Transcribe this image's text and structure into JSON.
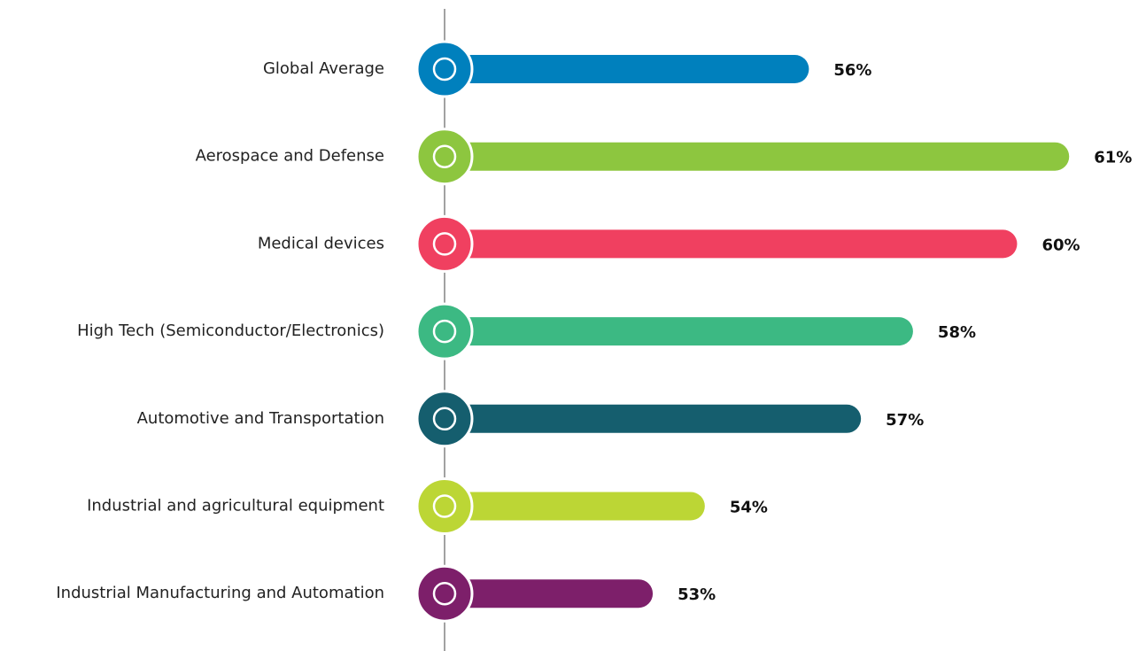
{
  "chart_data": {
    "type": "bar",
    "orientation": "horizontal",
    "categories": [
      "Global Average",
      "Aerospace and Defense",
      "Medical devices",
      "High Tech (Semiconductor/Electronics)",
      "Automotive and Transportation",
      "Industrial and agricultural equipment",
      "Industrial Manufacturing and Automation"
    ],
    "values": [
      56,
      61,
      60,
      58,
      57,
      54,
      53
    ],
    "value_labels": [
      "56%",
      "61%",
      "60%",
      "58%",
      "57%",
      "54%",
      "53%"
    ],
    "colors": [
      "#0080bd",
      "#8dc63f",
      "#f04060",
      "#3cb983",
      "#155e6e",
      "#bcd635",
      "#7d1f6a"
    ],
    "xlim": [
      49,
      62
    ]
  }
}
